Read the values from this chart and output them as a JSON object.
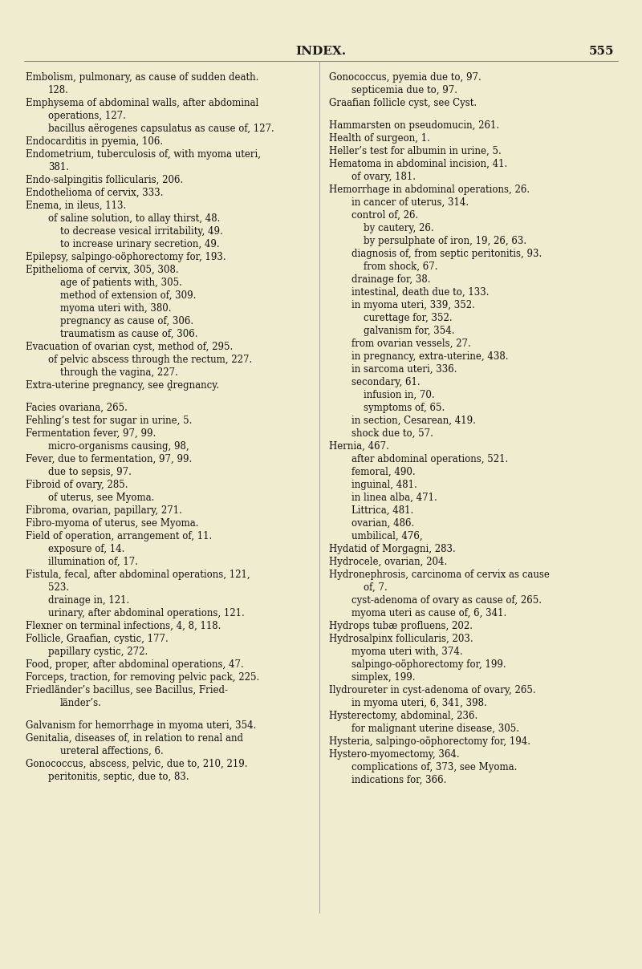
{
  "bg_color": "#f0ecd0",
  "title": "INDEX.",
  "page_num": "555",
  "left_column": [
    {
      "indent": 0,
      "text": "Embolism, pulmonary, as cause of sudden death."
    },
    {
      "indent": 1,
      "text": "128."
    },
    {
      "indent": 0,
      "text": "Emphysema of abdominal walls, after abdominal"
    },
    {
      "indent": 1,
      "text": "operations, 127."
    },
    {
      "indent": 1,
      "text": "bacillus aërogenes capsulatus as cause of, 127."
    },
    {
      "indent": 0,
      "text": "Endocarditis in pyemia, 106."
    },
    {
      "indent": 0,
      "text": "Endometrium, tuberculosis of, with myoma uteri,"
    },
    {
      "indent": 1,
      "text": "381."
    },
    {
      "indent": 0,
      "text": "Endo-salpingitis follicularis, 206."
    },
    {
      "indent": 0,
      "text": "Endothelioma of cervix, 333."
    },
    {
      "indent": 0,
      "text": "Enema, in ileus, 113."
    },
    {
      "indent": 1,
      "text": "of saline solution, to allay thirst, 48."
    },
    {
      "indent": 2,
      "text": "to decrease vesical irritability, 49."
    },
    {
      "indent": 2,
      "text": "to increase urinary secretion, 49."
    },
    {
      "indent": 0,
      "text": "Epilepsy, salpingo-oöphorectomy for, 193."
    },
    {
      "indent": 0,
      "text": "Epithelioma of cervix, 305, 308."
    },
    {
      "indent": 2,
      "text": "age of patients with, 305."
    },
    {
      "indent": 2,
      "text": "method of extension of, 309."
    },
    {
      "indent": 2,
      "text": "myoma uteri with, 380."
    },
    {
      "indent": 2,
      "text": "pregnancy as cause of, 306."
    },
    {
      "indent": 2,
      "text": "traumatism as cause of, 306."
    },
    {
      "indent": 0,
      "text": "Evacuation of ovarian cyst, method of, 295."
    },
    {
      "indent": 1,
      "text": "of pelvic abscess through the rectum, 227."
    },
    {
      "indent": 2,
      "text": "through the vagina, 227."
    },
    {
      "indent": 0,
      "text": "Extra-uterine pregnancy, see ḓregnancy."
    },
    {
      "indent": -1,
      "text": ""
    },
    {
      "indent": 0,
      "text": "Facies ovariana, 265."
    },
    {
      "indent": 0,
      "text": "Fehling’s test for sugar in urine, 5."
    },
    {
      "indent": 0,
      "text": "Fermentation fever, 97, 99."
    },
    {
      "indent": 1,
      "text": "micro-organisms causing, 98,"
    },
    {
      "indent": 0,
      "text": "Fever, due to fermentation, 97, 99."
    },
    {
      "indent": 1,
      "text": "due to sepsis, 97."
    },
    {
      "indent": 0,
      "text": "Fibroid of ovary, 285."
    },
    {
      "indent": 1,
      "text": "of uterus, see Myoma."
    },
    {
      "indent": 0,
      "text": "Fibroma, ovarian, papillary, 271."
    },
    {
      "indent": 0,
      "text": "Fibro-myoma of uterus, see Myoma."
    },
    {
      "indent": 0,
      "text": "Field of operation, arrangement of, 11."
    },
    {
      "indent": 1,
      "text": "exposure of, 14."
    },
    {
      "indent": 1,
      "text": "illumination of, 17."
    },
    {
      "indent": 0,
      "text": "Fistula, fecal, after abdominal operations, 121,"
    },
    {
      "indent": 1,
      "text": "523."
    },
    {
      "indent": 1,
      "text": "drainage in, 121."
    },
    {
      "indent": 1,
      "text": "urinary, after abdominal operations, 121."
    },
    {
      "indent": 0,
      "text": "Flexner on terminal infections, 4, 8, 118."
    },
    {
      "indent": 0,
      "text": "Follicle, Graafian, cystic, 177."
    },
    {
      "indent": 1,
      "text": "papillary cystic, 272."
    },
    {
      "indent": 0,
      "text": "Food, proper, after abdominal operations, 47."
    },
    {
      "indent": 0,
      "text": "Forceps, traction, for removing pelvic pack, 225."
    },
    {
      "indent": 0,
      "text": "Friedländer’s bacillus, see Bacillus, Fried-"
    },
    {
      "indent": 2,
      "text": "länder’s."
    },
    {
      "indent": -1,
      "text": ""
    },
    {
      "indent": 0,
      "text": "Galvanism for hemorrhage in myoma uteri, 354."
    },
    {
      "indent": 0,
      "text": "Genitalia, diseases of, in relation to renal and"
    },
    {
      "indent": 2,
      "text": "ureteral affections, 6."
    },
    {
      "indent": 0,
      "text": "Gonococcus, abscess, pelvic, due to, 210, 219."
    },
    {
      "indent": 1,
      "text": "peritonitis, septic, due to, 83."
    }
  ],
  "right_column": [
    {
      "indent": 0,
      "text": "Gonococcus, pyemia due to, 97."
    },
    {
      "indent": 1,
      "text": "septicemia due to, 97."
    },
    {
      "indent": 0,
      "text": "Graafian follicle cyst, see Cyst."
    },
    {
      "indent": -1,
      "text": ""
    },
    {
      "indent": 0,
      "text": "Hammarsten on pseudomucin, 261."
    },
    {
      "indent": 0,
      "text": "Health of surgeon, 1."
    },
    {
      "indent": 0,
      "text": "Heller’s test for albumin in urine, 5."
    },
    {
      "indent": 0,
      "text": "Hematoma in abdominal incision, 41."
    },
    {
      "indent": 1,
      "text": "of ovary, 181."
    },
    {
      "indent": 0,
      "text": "Hemorrhage in abdominal operations, 26."
    },
    {
      "indent": 1,
      "text": "in cancer of uterus, 314."
    },
    {
      "indent": 1,
      "text": "control of, 26."
    },
    {
      "indent": 2,
      "text": "by cautery, 26."
    },
    {
      "indent": 2,
      "text": "by persulphate of iron, 19, 26, 63."
    },
    {
      "indent": 1,
      "text": "diagnosis of, from septic peritonitis, 93."
    },
    {
      "indent": 2,
      "text": "from shock, 67."
    },
    {
      "indent": 1,
      "text": "drainage for, 38."
    },
    {
      "indent": 1,
      "text": "intestinal, death due to, 133."
    },
    {
      "indent": 1,
      "text": "in myoma uteri, 339, 352."
    },
    {
      "indent": 2,
      "text": "curettage for, 352."
    },
    {
      "indent": 2,
      "text": "galvanism for, 354."
    },
    {
      "indent": 1,
      "text": "from ovarian vessels, 27."
    },
    {
      "indent": 1,
      "text": "in pregnancy, extra-uterine, 438."
    },
    {
      "indent": 1,
      "text": "in sarcoma uteri, 336."
    },
    {
      "indent": 1,
      "text": "secondary, 61."
    },
    {
      "indent": 2,
      "text": "infusion in, 70."
    },
    {
      "indent": 2,
      "text": "symptoms of, 65."
    },
    {
      "indent": 1,
      "text": "in section, Cesarean, 419."
    },
    {
      "indent": 1,
      "text": "shock due to, 57."
    },
    {
      "indent": 0,
      "text": "Hernia, 467."
    },
    {
      "indent": 1,
      "text": "after abdominal operations, 521."
    },
    {
      "indent": 1,
      "text": "femoral, 490."
    },
    {
      "indent": 1,
      "text": "inguinal, 481."
    },
    {
      "indent": 1,
      "text": "in linea alba, 471."
    },
    {
      "indent": 1,
      "text": "Littrica, 481."
    },
    {
      "indent": 1,
      "text": "ovarian, 486."
    },
    {
      "indent": 1,
      "text": "umbilical, 476,"
    },
    {
      "indent": 0,
      "text": "Hydatid of Morgagni, 283."
    },
    {
      "indent": 0,
      "text": "Hydrocele, ovarian, 204."
    },
    {
      "indent": 0,
      "text": "Hydronephrosis, carcinoma of cervix as cause"
    },
    {
      "indent": 2,
      "text": "of, 7."
    },
    {
      "indent": 1,
      "text": "cyst-adenoma of ovary as cause of, 265."
    },
    {
      "indent": 1,
      "text": "myoma uteri as cause of, 6, 341."
    },
    {
      "indent": 0,
      "text": "Hydrops tubæ profluens, 202."
    },
    {
      "indent": 0,
      "text": "Hydrosalpinx follicularis, 203."
    },
    {
      "indent": 1,
      "text": "myoma uteri with, 374."
    },
    {
      "indent": 1,
      "text": "salpingo-oöphorectomy for, 199."
    },
    {
      "indent": 1,
      "text": "simplex, 199."
    },
    {
      "indent": 0,
      "text": "Ilydroureter in cyst-adenoma of ovary, 265."
    },
    {
      "indent": 1,
      "text": "in myoma uteri, 6, 341, 398."
    },
    {
      "indent": 0,
      "text": "Hysterectomy, abdominal, 236."
    },
    {
      "indent": 1,
      "text": "for malignant uterine disease, 305."
    },
    {
      "indent": 0,
      "text": "Hysteria, salpingo-oöphorectomy for, 194."
    },
    {
      "indent": 0,
      "text": "Hystero-myomectomy, 364."
    },
    {
      "indent": 1,
      "text": "complications of, 373, see Myoma."
    },
    {
      "indent": 1,
      "text": "indications for, 366."
    }
  ]
}
